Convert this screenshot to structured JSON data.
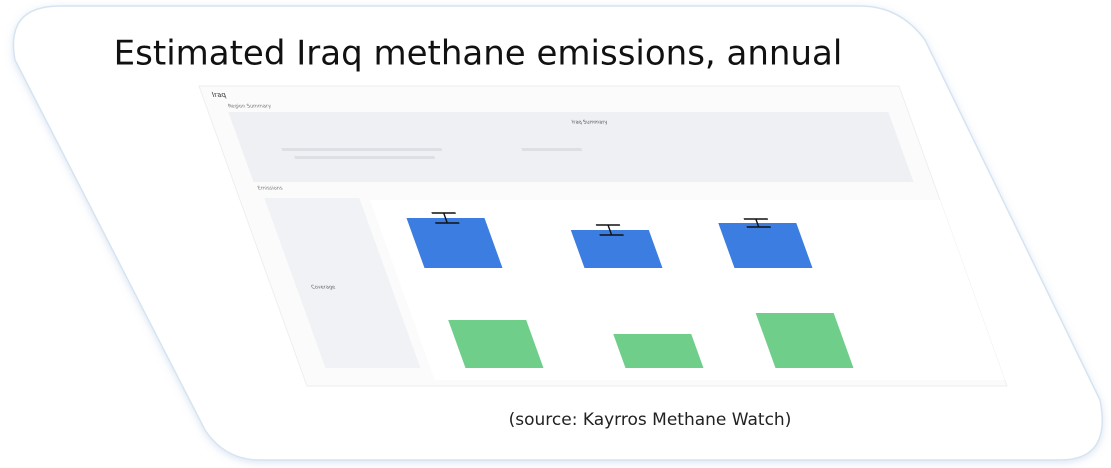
{
  "title": "Estimated Iraq methane emissions, annual",
  "source": "(source: Kayrros Methane Watch)",
  "screenshot": {
    "region": "Iraq",
    "section": "Region Summary",
    "summary_title": "Iraq Summary",
    "emissions_heading": "Emissions",
    "coverage_heading": "Coverage",
    "emissions": {
      "color": "#3b7de0",
      "values": [
        50,
        38,
        45
      ],
      "errors": [
        5,
        5,
        4
      ]
    },
    "coverage": {
      "color": "#6fcf8a",
      "values": [
        48,
        34,
        55
      ]
    }
  }
}
